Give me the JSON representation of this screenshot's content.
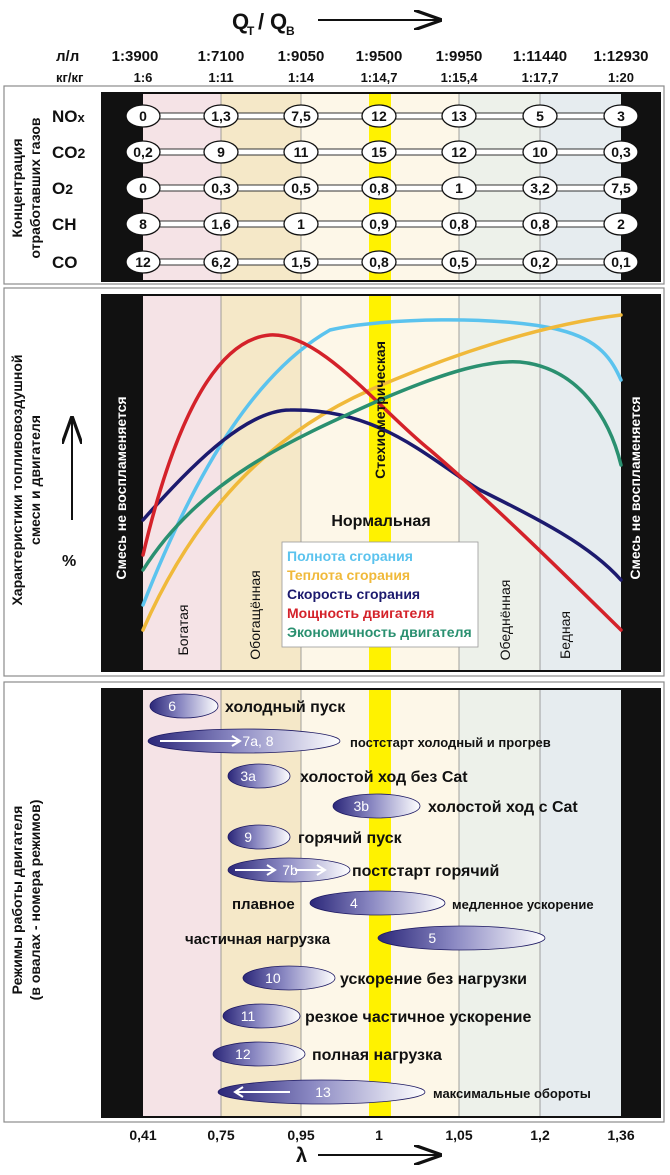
{
  "header": {
    "title_main": "Q",
    "title_sub_t": "T",
    "title_slash": "/",
    "title_q2": "Q",
    "title_sub_b": "B",
    "row1_unit": "л/л",
    "row2_unit": "кг/кг",
    "row1_values": [
      "1:3900",
      "1:7100",
      "1:9050",
      "1:9500",
      "1:9950",
      "1:11440",
      "1:12930"
    ],
    "row2_values": [
      "1:6",
      "1:11",
      "1:14",
      "1:14,7",
      "1:15,4",
      "1:17,7",
      "1:20"
    ]
  },
  "colors": {
    "rich": "#f5e3e6",
    "enriched": "#f5e8c8",
    "normal": "#fdf7e8",
    "lean": "#edf1ea",
    "poor": "#e6ecef",
    "stoich": "#fff200",
    "completeness": "#5bc3ee",
    "heat": "#f0b93a",
    "speed": "#1c1a6e",
    "power": "#d4222a",
    "economy": "#2a9070"
  },
  "panel1": {
    "axis_label_line1": "Концентрация",
    "axis_label_line2": "отработавших газов",
    "rows": [
      {
        "gas": "NOx",
        "values": [
          "0",
          "1,3",
          "7,5",
          "12",
          "13",
          "5",
          "3"
        ]
      },
      {
        "gas": "CO2",
        "values": [
          "0,2",
          "9",
          "11",
          "15",
          "12",
          "10",
          "0,3"
        ]
      },
      {
        "gas": "O2",
        "values": [
          "0",
          "0,3",
          "0,5",
          "0,8",
          "1",
          "3,2",
          "7,5"
        ]
      },
      {
        "gas": "CH",
        "values": [
          "8",
          "1,6",
          "1",
          "0,9",
          "0,8",
          "0,8",
          "2"
        ]
      },
      {
        "gas": "CO",
        "values": [
          "12",
          "6,2",
          "1,5",
          "0,8",
          "0,5",
          "0,2",
          "0,1"
        ]
      }
    ]
  },
  "panel2": {
    "axis_label_line1": "Характеристики топливовоздушной",
    "axis_label_line2": "смеси и двигателя",
    "percent": "%",
    "left_bar": "Смесь не воспламеняется",
    "right_bar": "Смесь не воспламеняется",
    "stoich_label": "Стехиометрическая",
    "normal_label": "Нормальная",
    "zone_labels": [
      "Богатая",
      "Обогащённая",
      "Обеднённая",
      "Бедная"
    ],
    "legend": [
      {
        "name": "Полнота сгорания",
        "color": "#5bc3ee"
      },
      {
        "name": "Теплота сгорания",
        "color": "#f0b93a"
      },
      {
        "name": "Скорость сгорания",
        "color": "#1c1a6e"
      },
      {
        "name": "Мощность двигателя",
        "color": "#d4222a"
      },
      {
        "name": "Экономичность двигателя",
        "color": "#2a9070"
      }
    ]
  },
  "panel3": {
    "axis_label_line1": "Режимы работы двигателя",
    "axis_label_line2": "(в овалах - номера режимов)",
    "modes": [
      {
        "num": "6",
        "label": "холодный пуск"
      },
      {
        "num": "7а, 8",
        "label": "постстарт холодный и прогрев"
      },
      {
        "num": "3а",
        "label": "холостой ход без Cat"
      },
      {
        "num": "3b",
        "label": "холостой ход с Cat"
      },
      {
        "num": "9",
        "label": "горячий пуск"
      },
      {
        "num": "7b",
        "label": "постстарт горячий"
      },
      {
        "num": "4",
        "label_left": "плавное",
        "label": "медленное ускорение"
      },
      {
        "num": "5",
        "label_left": "частичная нагрузка"
      },
      {
        "num": "10",
        "label": "ускорение без нагрузки"
      },
      {
        "num": "11",
        "label": "резкое частичное ускорение"
      },
      {
        "num": "12",
        "label": "полная нагрузка"
      },
      {
        "num": "13",
        "label": "максимальные обороты"
      }
    ]
  },
  "x_axis": {
    "ticks": [
      "0,41",
      "0,75",
      "0,95",
      "1",
      "1,05",
      "1,2",
      "1,36"
    ],
    "label": "λ"
  }
}
